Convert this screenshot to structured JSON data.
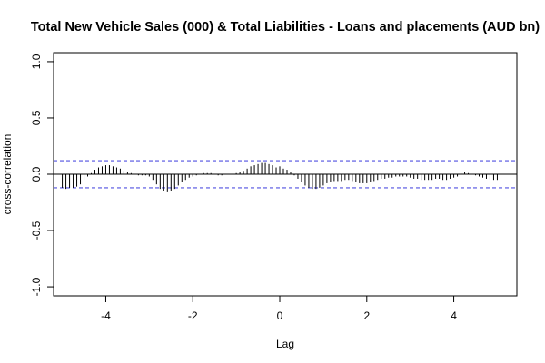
{
  "chart_data": {
    "type": "bar",
    "title": "Total New Vehicle Sales (000) & Total Liabilities - Loans and placements (AUD bn)",
    "xlabel": "Lag",
    "ylabel": "cross-correlation",
    "xlim": [
      -5.2,
      5.45
    ],
    "ylim": [
      -1.08,
      1.08
    ],
    "x_ticks": [
      -4,
      -2,
      0,
      2,
      4
    ],
    "x_tick_labels": [
      "-4",
      "-2",
      "0",
      "2",
      "4"
    ],
    "y_ticks": [
      -1.0,
      -0.5,
      0.0,
      0.5,
      1.0
    ],
    "y_tick_labels": [
      "-1.0",
      "-0.5",
      "0.0",
      "0.5",
      "1.0"
    ],
    "confidence_bounds": [
      0.12,
      -0.12
    ],
    "bound_color": "#5050e0",
    "bar_color": "#000000",
    "grid": false,
    "lag_step": 0.0833,
    "x": [
      -5.0,
      -4.9167,
      -4.8333,
      -4.75,
      -4.6667,
      -4.5833,
      -4.5,
      -4.4167,
      -4.3333,
      -4.25,
      -4.1667,
      -4.0833,
      -4.0,
      -3.9167,
      -3.8333,
      -3.75,
      -3.6667,
      -3.5833,
      -3.5,
      -3.4167,
      -3.3333,
      -3.25,
      -3.1667,
      -3.0833,
      -3.0,
      -2.9167,
      -2.8333,
      -2.75,
      -2.6667,
      -2.5833,
      -2.5,
      -2.4167,
      -2.3333,
      -2.25,
      -2.1667,
      -2.0833,
      -2.0,
      -1.9167,
      -1.8333,
      -1.75,
      -1.6667,
      -1.5833,
      -1.5,
      -1.4167,
      -1.3333,
      -1.25,
      -1.1667,
      -1.0833,
      -1.0,
      -0.9167,
      -0.8333,
      -0.75,
      -0.6667,
      -0.5833,
      -0.5,
      -0.4167,
      -0.3333,
      -0.25,
      -0.1667,
      -0.0833,
      0.0,
      0.0833,
      0.1667,
      0.25,
      0.3333,
      0.4167,
      0.5,
      0.5833,
      0.6667,
      0.75,
      0.8333,
      0.9167,
      1.0,
      1.0833,
      1.1667,
      1.25,
      1.3333,
      1.4167,
      1.5,
      1.5833,
      1.6667,
      1.75,
      1.8333,
      1.9167,
      2.0,
      2.0833,
      2.1667,
      2.25,
      2.3333,
      2.4167,
      2.5,
      2.5833,
      2.6667,
      2.75,
      2.8333,
      2.9167,
      3.0,
      3.0833,
      3.1667,
      3.25,
      3.3333,
      3.4167,
      3.5,
      3.5833,
      3.6667,
      3.75,
      3.8333,
      3.9167,
      4.0,
      4.0833,
      4.1667,
      4.25,
      4.3333,
      4.4167,
      4.5,
      4.5833,
      4.6667,
      4.75,
      4.8333,
      4.9167,
      5.0
    ],
    "values": [
      -0.12,
      -0.13,
      -0.12,
      -0.12,
      -0.11,
      -0.09,
      -0.05,
      -0.02,
      0.01,
      0.04,
      0.06,
      0.07,
      0.08,
      0.08,
      0.07,
      0.06,
      0.05,
      0.03,
      0.02,
      0.01,
      0.0,
      -0.01,
      -0.01,
      -0.01,
      -0.02,
      -0.05,
      -0.09,
      -0.13,
      -0.15,
      -0.16,
      -0.15,
      -0.13,
      -0.1,
      -0.07,
      -0.05,
      -0.03,
      -0.02,
      -0.01,
      0.0,
      0.01,
      0.01,
      0.01,
      0.0,
      -0.01,
      -0.01,
      0.0,
      0.0,
      0.0,
      0.01,
      0.02,
      0.03,
      0.05,
      0.07,
      0.08,
      0.09,
      0.1,
      0.1,
      0.09,
      0.08,
      0.06,
      0.07,
      0.05,
      0.04,
      0.02,
      -0.01,
      -0.04,
      -0.07,
      -0.1,
      -0.12,
      -0.13,
      -0.13,
      -0.12,
      -0.1,
      -0.08,
      -0.07,
      -0.06,
      -0.06,
      -0.06,
      -0.05,
      -0.05,
      -0.06,
      -0.07,
      -0.08,
      -0.08,
      -0.08,
      -0.07,
      -0.06,
      -0.05,
      -0.04,
      -0.04,
      -0.03,
      -0.03,
      -0.02,
      -0.02,
      -0.02,
      -0.02,
      -0.03,
      -0.04,
      -0.04,
      -0.05,
      -0.05,
      -0.05,
      -0.05,
      -0.04,
      -0.04,
      -0.05,
      -0.05,
      -0.04,
      -0.03,
      -0.02,
      0.01,
      0.02,
      0.01,
      0.0,
      -0.01,
      -0.02,
      -0.03,
      -0.04,
      -0.05,
      -0.05,
      -0.05
    ]
  }
}
